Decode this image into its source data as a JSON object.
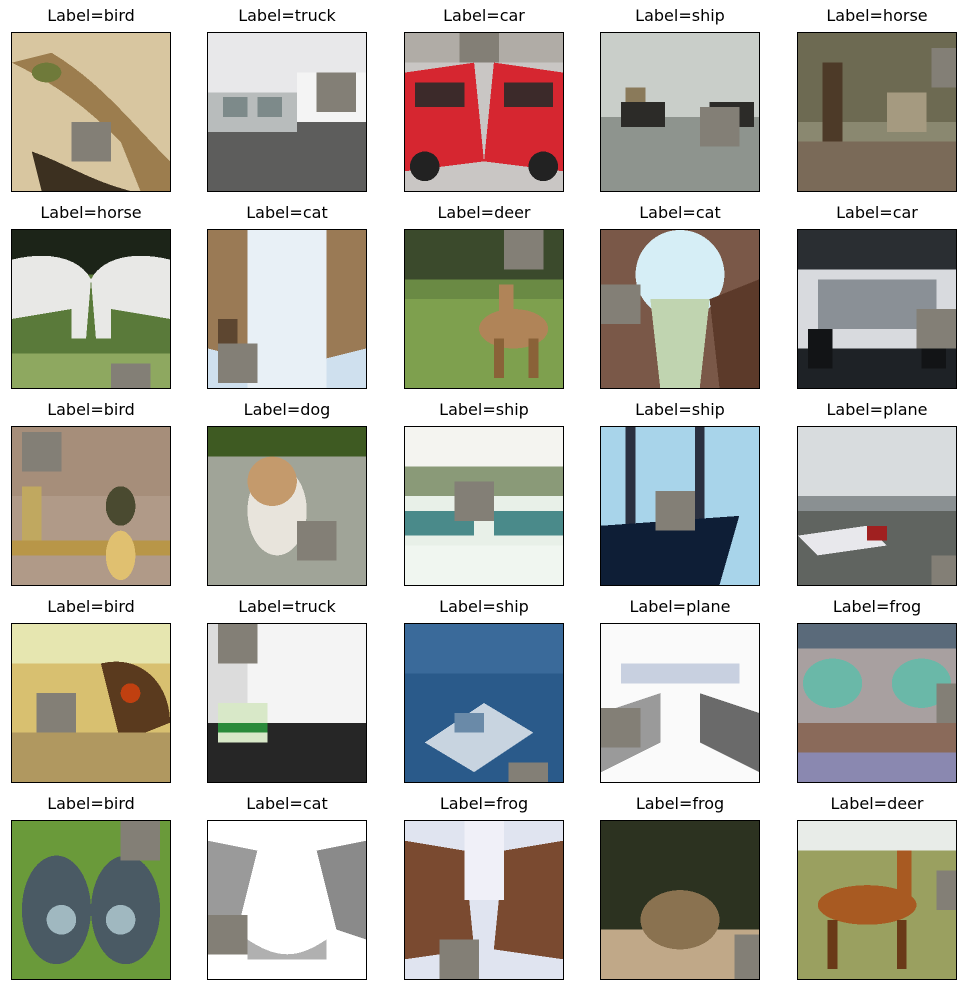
{
  "figure": {
    "panels": [
      {
        "label": "Label=bird",
        "scene": "bird-sand"
      },
      {
        "label": "Label=truck",
        "scene": "truck-white"
      },
      {
        "label": "Label=car",
        "scene": "car-red"
      },
      {
        "label": "Label=ship",
        "scene": "ship-fog"
      },
      {
        "label": "Label=horse",
        "scene": "horse-forest"
      },
      {
        "label": "Label=horse",
        "scene": "horse-white"
      },
      {
        "label": "Label=cat",
        "scene": "cat-sky"
      },
      {
        "label": "Label=deer",
        "scene": "deer-grass"
      },
      {
        "label": "Label=cat",
        "scene": "cat-keyhole"
      },
      {
        "label": "Label=car",
        "scene": "car-dark"
      },
      {
        "label": "Label=bird",
        "scene": "bird-blur"
      },
      {
        "label": "Label=dog",
        "scene": "dog-path"
      },
      {
        "label": "Label=ship",
        "scene": "ship-harbor"
      },
      {
        "label": "Label=ship",
        "scene": "ship-dark"
      },
      {
        "label": "Label=plane",
        "scene": "plane-runway"
      },
      {
        "label": "Label=bird",
        "scene": "bird-owl"
      },
      {
        "label": "Label=truck",
        "scene": "truck-road"
      },
      {
        "label": "Label=ship",
        "scene": "ship-sea"
      },
      {
        "label": "Label=plane",
        "scene": "plane-white"
      },
      {
        "label": "Label=frog",
        "scene": "frog-green"
      },
      {
        "label": "Label=bird",
        "scene": "bird-grass"
      },
      {
        "label": "Label=cat",
        "scene": "cat-white"
      },
      {
        "label": "Label=frog",
        "scene": "frog-brown"
      },
      {
        "label": "Label=frog",
        "scene": "frog-dark"
      },
      {
        "label": "Label=deer",
        "scene": "deer-field"
      }
    ],
    "cutout_color": "#837f76"
  }
}
